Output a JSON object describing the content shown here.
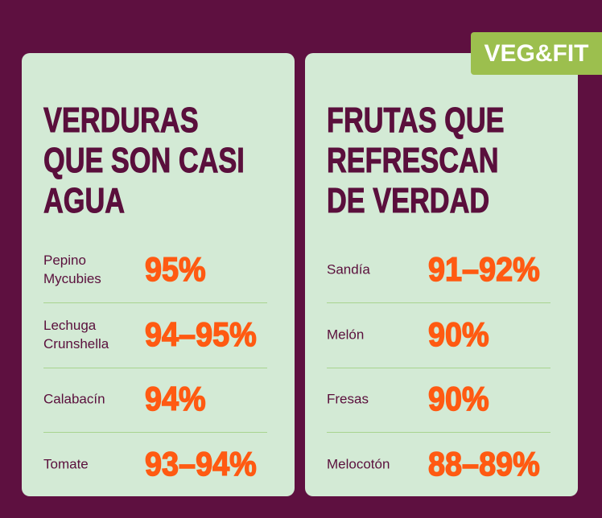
{
  "logo": "VEG&FIT",
  "cards": [
    {
      "title": [
        "VERDURAS",
        "QUE SON CASI",
        "AGUA"
      ],
      "rows": [
        {
          "name": "Pepino Mycubies",
          "value": "95%"
        },
        {
          "name": "Lechuga Crunshella",
          "value": "94–95%"
        },
        {
          "name": "Calabacín",
          "value": "94%"
        },
        {
          "name": "Tomate",
          "value": "93–94%"
        }
      ]
    },
    {
      "title": [
        "FRUTAS QUE",
        "REFRESCAN",
        "DE VERDAD"
      ],
      "rows": [
        {
          "name": "Sandía",
          "value": "91–92%"
        },
        {
          "name": "Melón",
          "value": "90%"
        },
        {
          "name": "Fresas",
          "value": "90%"
        },
        {
          "name": "Melocotón",
          "value": "88–89%"
        }
      ]
    }
  ]
}
